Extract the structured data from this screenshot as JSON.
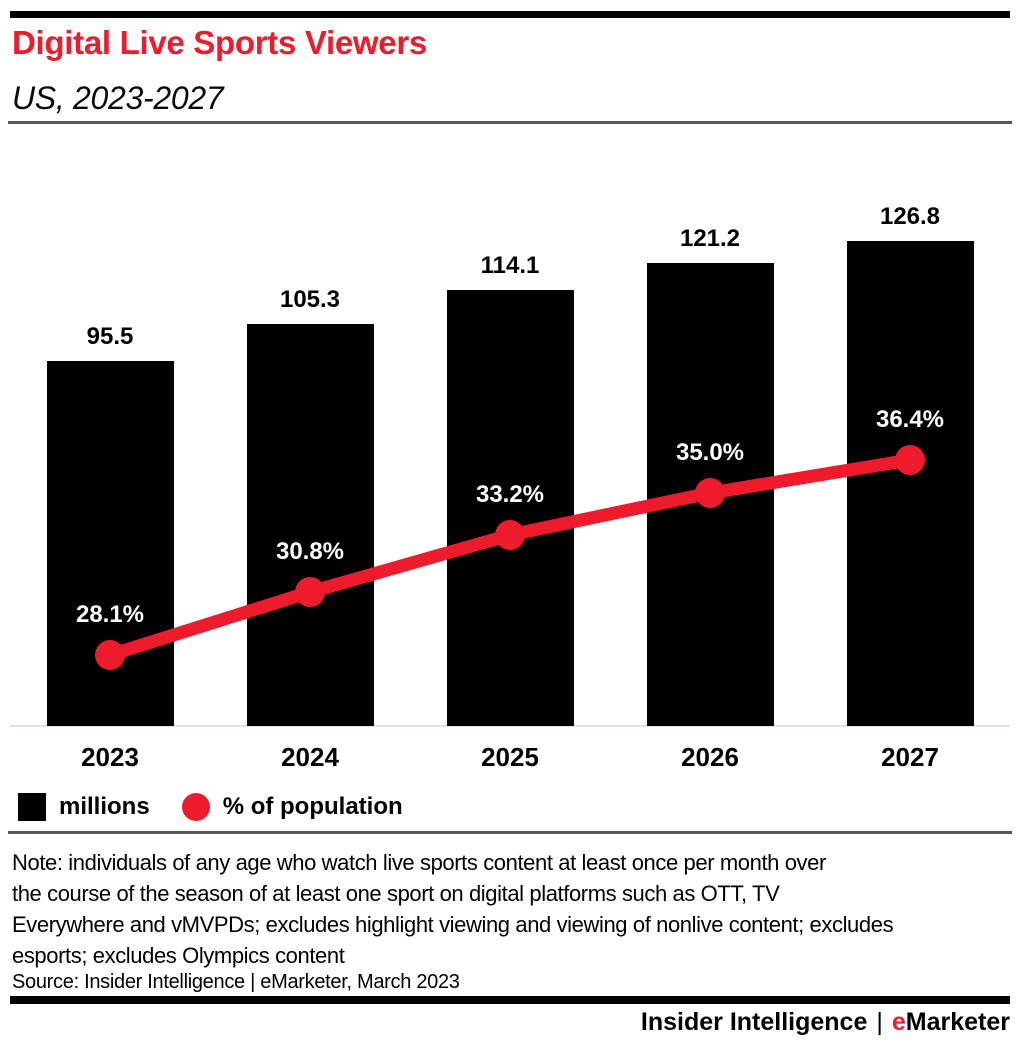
{
  "header": {
    "title": "Digital Live Sports Viewers",
    "subtitle": "US, 2023-2027"
  },
  "chart_data": {
    "type": "bar",
    "title": "Digital Live Sports Viewers",
    "subtitle": "US, 2023-2027",
    "categories": [
      "2023",
      "2024",
      "2025",
      "2026",
      "2027"
    ],
    "series": [
      {
        "name": "millions",
        "type": "bar",
        "values": [
          95.5,
          105.3,
          114.1,
          121.2,
          126.8
        ],
        "labels": [
          "95.5",
          "105.3",
          "114.1",
          "121.2",
          "126.8"
        ],
        "color": "#000000",
        "marker": "square"
      },
      {
        "name": "% of population",
        "type": "line",
        "values": [
          28.1,
          30.8,
          33.2,
          35.0,
          36.4
        ],
        "labels": [
          "28.1%",
          "30.8%",
          "33.2%",
          "35.0%",
          "36.4%"
        ],
        "color": "#ed1b2c",
        "marker": "circle"
      }
    ],
    "xlabel": "",
    "ylabel": "",
    "ylim_bars": [
      0,
      155
    ],
    "ylim_line_pct": [
      0,
      40
    ],
    "grid": false,
    "data_labels": true,
    "legend_position": "bottom"
  },
  "note": {
    "lines": [
      "Note: individuals of any age who watch live sports content at least once per month over",
      "the course of the season of at least one sport on digital platforms such as OTT, TV",
      "Everywhere and vMVPDs; excludes highlight viewing and viewing of nonlive content; excludes",
      "esports; excludes Olympics content"
    ]
  },
  "source": {
    "text": "Source: Insider Intelligence | eMarketer, March 2023"
  },
  "footer": {
    "brand_left": "Insider Intelligence",
    "separator": "|",
    "brand_e": "e",
    "brand_right": "Marketer"
  },
  "colors": {
    "accent": "#ed1b2c",
    "bar": "#000000",
    "divider": "#57585a"
  }
}
